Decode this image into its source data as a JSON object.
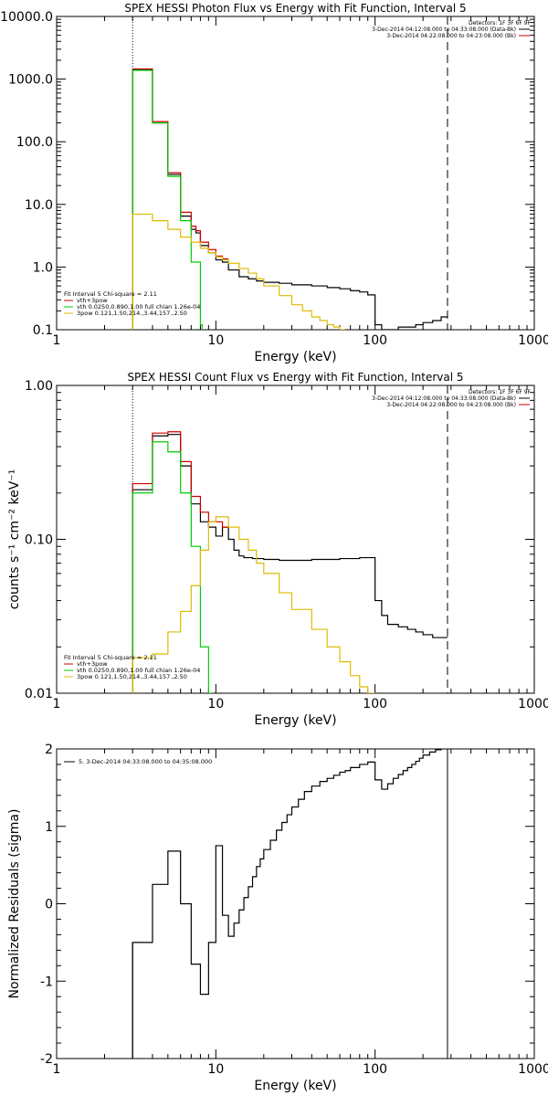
{
  "chart_data": [
    {
      "type": "line",
      "title": "SPEX HESSI Photon Flux vs Energy with Fit Function, Interval 5",
      "xlabel": "Energy (keV)",
      "ylabel": "",
      "xscale": "log",
      "yscale": "log",
      "xlim": [
        1,
        1000
      ],
      "ylim": [
        0.1,
        10000
      ],
      "x_ticks": [
        1,
        10,
        100,
        1000
      ],
      "x_tick_labels": [
        "1",
        "10",
        "100",
        "1000"
      ],
      "y_ticks": [
        0.1,
        1,
        10,
        100,
        1000,
        10000
      ],
      "y_tick_labels": [
        "0.1",
        "1.0",
        "10.0",
        "100.0",
        "1000.0",
        "10000.0"
      ],
      "grid": false,
      "vlines": [
        {
          "x": 3,
          "style": "dotted"
        },
        {
          "x": 285,
          "style": "dashed"
        }
      ],
      "info_box": {
        "placement": "top-right",
        "lines": [
          "Detectors: 1F 3F 6F 9F",
          "3-Dec-2014 04:12:08.000 to 04:33:08.000 (Data-Bk)",
          "3-Dec-2014 04:22:08.000 to 04:23:08.000 (Bk)"
        ],
        "colors": [
          "#000000",
          "#cc0000"
        ]
      },
      "legend": {
        "placement": "bottom-left",
        "header": "Fit Interval 5   Chi-square = 2.11",
        "entries": [
          {
            "label": "vth+3pow",
            "color": "#cc0000"
          },
          {
            "label": "vth 0.0250,0.890,1.00  full chian 1.26e-04",
            "color": "#00cc00"
          },
          {
            "label": "3pow 0.121,1.50,214.,3.44,157.,2.50",
            "color": "#ddbb00"
          }
        ]
      },
      "series": [
        {
          "color": "#000000",
          "edges": [
            3.0,
            3.5,
            4.0,
            4.5,
            5.0,
            5.5,
            6.0,
            6.5,
            7.0,
            7.5,
            8.0,
            9.0,
            10.0,
            11.0,
            12.0,
            14.0,
            16.0,
            18.0,
            20.0,
            25.0,
            30.0,
            40.0,
            50.0,
            60.0,
            70.0,
            80.0,
            90.0,
            100.0,
            110.0,
            120.0,
            140.0,
            160.0,
            180.0,
            200.0,
            230.0,
            260.0,
            285.0
          ],
          "values": [
            1400,
            1400,
            200,
            200,
            30,
            30,
            6.5,
            6.5,
            4.0,
            3.5,
            2.2,
            1.7,
            1.3,
            1.2,
            0.9,
            0.7,
            0.65,
            0.6,
            0.57,
            0.55,
            0.52,
            0.5,
            0.47,
            0.45,
            0.42,
            0.4,
            0.36,
            0.12,
            0.1,
            0.1,
            0.11,
            0.11,
            0.12,
            0.13,
            0.14,
            0.16
          ]
        },
        {
          "color": "#cc0000",
          "edges": [
            3.0,
            3.5,
            4.0,
            4.5,
            5.0,
            5.5,
            6.0,
            6.5,
            7.0,
            7.5,
            8.0,
            9.0,
            10.0,
            11.0,
            12.0
          ],
          "values": [
            1450,
            1450,
            210,
            210,
            32,
            32,
            7.5,
            7.5,
            4.5,
            3.8,
            2.5,
            1.9,
            1.5,
            1.35
          ]
        },
        {
          "color": "#00cc00",
          "edges": [
            3.0,
            3.5,
            4.0,
            4.5,
            5.0,
            5.5,
            6.0,
            6.5,
            7.0,
            7.5,
            8.0,
            8.2
          ],
          "values": [
            1380,
            1380,
            200,
            200,
            28,
            28,
            5.5,
            5.5,
            1.2,
            1.2,
            0.12
          ]
        },
        {
          "color": "#ddbb00",
          "edges": [
            3.0,
            3.5,
            4.0,
            4.5,
            5.0,
            5.5,
            6.0,
            6.5,
            7.0,
            8.0,
            9.0,
            10.0,
            11.0,
            12.0,
            14.0,
            16.0,
            18.0,
            20.0,
            25.0,
            30.0,
            35.0,
            40.0,
            45.0,
            50.0,
            55.0,
            60.0,
            65.0
          ],
          "values": [
            7.0,
            7.0,
            5.5,
            5.5,
            4.0,
            4.0,
            3.0,
            3.0,
            2.5,
            2.0,
            1.7,
            1.45,
            1.3,
            1.15,
            0.95,
            0.8,
            0.65,
            0.5,
            0.35,
            0.25,
            0.2,
            0.16,
            0.14,
            0.12,
            0.11,
            0.1
          ]
        }
      ]
    },
    {
      "type": "line",
      "title": "SPEX HESSI Count Flux vs Energy with Fit Function, Interval 5",
      "xlabel": "Energy (keV)",
      "ylabel": "counts s⁻¹ cm⁻² keV⁻¹",
      "xscale": "log",
      "yscale": "log",
      "xlim": [
        1,
        1000
      ],
      "ylim": [
        0.01,
        1.0
      ],
      "x_ticks": [
        1,
        10,
        100,
        1000
      ],
      "x_tick_labels": [
        "1",
        "10",
        "100",
        "1000"
      ],
      "y_ticks": [
        0.01,
        0.1,
        1.0
      ],
      "y_tick_labels": [
        "0.01",
        "0.10",
        "1.00"
      ],
      "grid": false,
      "vlines": [
        {
          "x": 3,
          "style": "dotted"
        },
        {
          "x": 285,
          "style": "dashed"
        }
      ],
      "info_box": {
        "placement": "top-right",
        "lines": [
          "Detectors: 1F 3F 6F 9F",
          "3-Dec-2014 04:12:08.000 to 04:33:08.000 (Data-Bk)",
          "3-Dec-2014 04:22:08.000 to 04:23:08.000 (Bk)"
        ],
        "colors": [
          "#000000",
          "#cc0000"
        ]
      },
      "legend": {
        "placement": "bottom-left",
        "header": "Fit Interval 5   Chi-square = 2.11",
        "entries": [
          {
            "label": "vth+3pow",
            "color": "#cc0000"
          },
          {
            "label": "vth 0.0250,0.890,1.00  full chian 1.26e-04",
            "color": "#00cc00"
          },
          {
            "label": "3pow 0.121,1.50,214.,3.44,157.,2.50",
            "color": "#ddbb00"
          }
        ]
      },
      "series": [
        {
          "color": "#000000",
          "edges": [
            3.0,
            4.0,
            5.0,
            6.0,
            7.0,
            8.0,
            9.0,
            10.0,
            11.0,
            12.0,
            13.0,
            14.0,
            15.0,
            17.0,
            20.0,
            25.0,
            30.0,
            40.0,
            50.0,
            60.0,
            70.0,
            80.0,
            90.0,
            100.0,
            110.0,
            120.0,
            140.0,
            160.0,
            180.0,
            200.0,
            230.0,
            260.0,
            285.0
          ],
          "values": [
            0.21,
            0.47,
            0.48,
            0.3,
            0.17,
            0.13,
            0.12,
            0.105,
            0.12,
            0.1,
            0.085,
            0.078,
            0.076,
            0.075,
            0.074,
            0.073,
            0.073,
            0.074,
            0.074,
            0.075,
            0.075,
            0.076,
            0.076,
            0.04,
            0.032,
            0.028,
            0.027,
            0.026,
            0.025,
            0.024,
            0.023,
            0.023
          ]
        },
        {
          "color": "#cc0000",
          "edges": [
            3.0,
            4.0,
            5.0,
            6.0,
            7.0,
            8.0,
            9.0,
            10.0,
            11.0,
            12.0
          ],
          "values": [
            0.23,
            0.49,
            0.5,
            0.32,
            0.19,
            0.15,
            0.13,
            0.13,
            0.12
          ]
        },
        {
          "color": "#00cc00",
          "edges": [
            3.0,
            4.0,
            5.0,
            6.0,
            7.0,
            8.0,
            9.0,
            9.5
          ],
          "values": [
            0.2,
            0.43,
            0.37,
            0.2,
            0.09,
            0.02,
            0.01
          ]
        },
        {
          "color": "#ddbb00",
          "edges": [
            3.0,
            4.0,
            5.0,
            6.0,
            7.0,
            8.0,
            9.0,
            10.0,
            12.0,
            14.0,
            16.0,
            18.0,
            20.0,
            25.0,
            30.0,
            40.0,
            50.0,
            60.0,
            70.0,
            80.0,
            90.0,
            100.0
          ],
          "values": [
            0.017,
            0.018,
            0.025,
            0.034,
            0.05,
            0.085,
            0.13,
            0.14,
            0.12,
            0.1,
            0.085,
            0.07,
            0.06,
            0.045,
            0.035,
            0.026,
            0.02,
            0.016,
            0.013,
            0.011,
            0.01
          ]
        }
      ]
    },
    {
      "type": "line",
      "title": "",
      "xlabel": "Energy (keV)",
      "ylabel": "Normalized Residuals (sigma)",
      "xscale": "log",
      "yscale": "linear",
      "xlim": [
        1,
        1000
      ],
      "ylim": [
        -2,
        2
      ],
      "x_ticks": [
        1,
        10,
        100,
        1000
      ],
      "x_tick_labels": [
        "1",
        "10",
        "100",
        "1000"
      ],
      "y_ticks": [
        -2,
        -1,
        0,
        1,
        2
      ],
      "y_tick_labels": [
        "-2",
        "-1",
        "0",
        "1",
        "2"
      ],
      "grid": false,
      "legend": {
        "placement": "top-left",
        "entries": [
          {
            "label": "5.  3-Dec-2014 04:33:08.000 to 04:35:08.000",
            "color": "#000000"
          }
        ]
      },
      "series": [
        {
          "color": "#000000",
          "edges": [
            3.0,
            4.0,
            5.0,
            6.0,
            7.0,
            8.0,
            9.0,
            10.0,
            11.0,
            12.0,
            13.0,
            14.0,
            15.0,
            16.0,
            17.0,
            18.0,
            19.0,
            20.0,
            22.0,
            24.0,
            26.0,
            28.0,
            30.0,
            33.0,
            36.0,
            40.0,
            45.0,
            50.0,
            55.0,
            60.0,
            65.0,
            70.0,
            80.0,
            90.0,
            100.0,
            110.0,
            120.0,
            130.0,
            140.0,
            150.0,
            160.0,
            170.0,
            180.0,
            190.0,
            200.0,
            220.0,
            240.0,
            260.0,
            285.0
          ],
          "values": [
            -0.5,
            0.25,
            0.68,
            0.0,
            -0.78,
            -1.17,
            -0.5,
            0.75,
            -0.15,
            -0.42,
            -0.25,
            -0.08,
            0.08,
            0.22,
            0.35,
            0.48,
            0.58,
            0.7,
            0.82,
            0.95,
            1.05,
            1.15,
            1.25,
            1.35,
            1.45,
            1.52,
            1.58,
            1.62,
            1.66,
            1.7,
            1.72,
            1.76,
            1.8,
            1.83,
            1.6,
            1.48,
            1.55,
            1.62,
            1.67,
            1.72,
            1.76,
            1.8,
            1.84,
            1.88,
            1.92,
            1.96,
            1.99,
            2.02
          ]
        }
      ],
      "vlines": [
        {
          "x": 3,
          "y_range": [
            -2,
            -0.5
          ],
          "style": "solid"
        },
        {
          "x": 285,
          "y_range": [
            -2,
            2.02
          ],
          "style": "solid"
        }
      ]
    }
  ]
}
